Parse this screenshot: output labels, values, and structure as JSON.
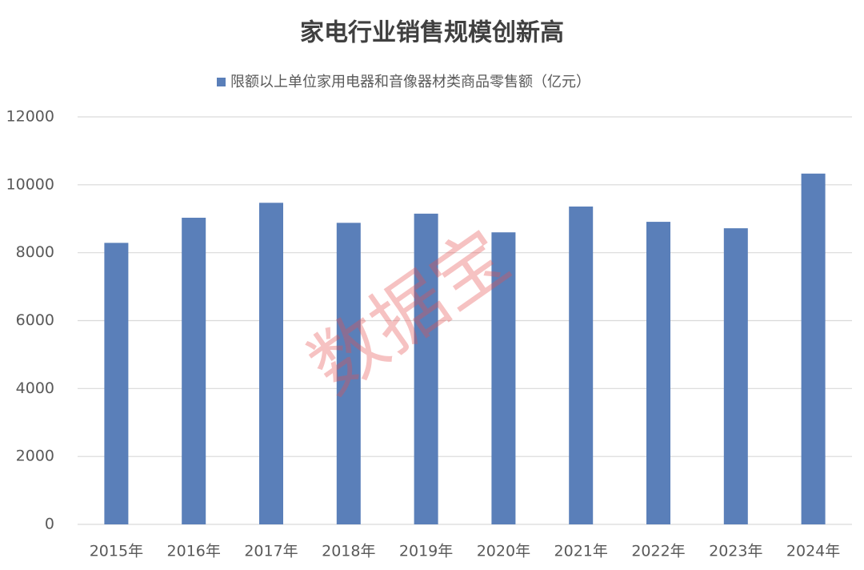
{
  "chart_data": {
    "type": "bar",
    "title": "家电行业销售规模创新高",
    "watermark": "数据宝",
    "categories": [
      "2015年",
      "2016年",
      "2017年",
      "2018年",
      "2019年",
      "2020年",
      "2021年",
      "2022年",
      "2023年",
      "2024年"
    ],
    "series": [
      {
        "name": "限额以上单位家用电器和音像器材类商品零售额（亿元）",
        "color": "#5a7fb9",
        "values": [
          8290,
          9030,
          9470,
          8880,
          9150,
          8600,
          9360,
          8910,
          8720,
          10330
        ]
      }
    ],
    "ylim": [
      0,
      12000
    ],
    "yticks": [
      0,
      2000,
      4000,
      6000,
      8000,
      10000,
      12000
    ],
    "grid": true,
    "legend": "top"
  }
}
